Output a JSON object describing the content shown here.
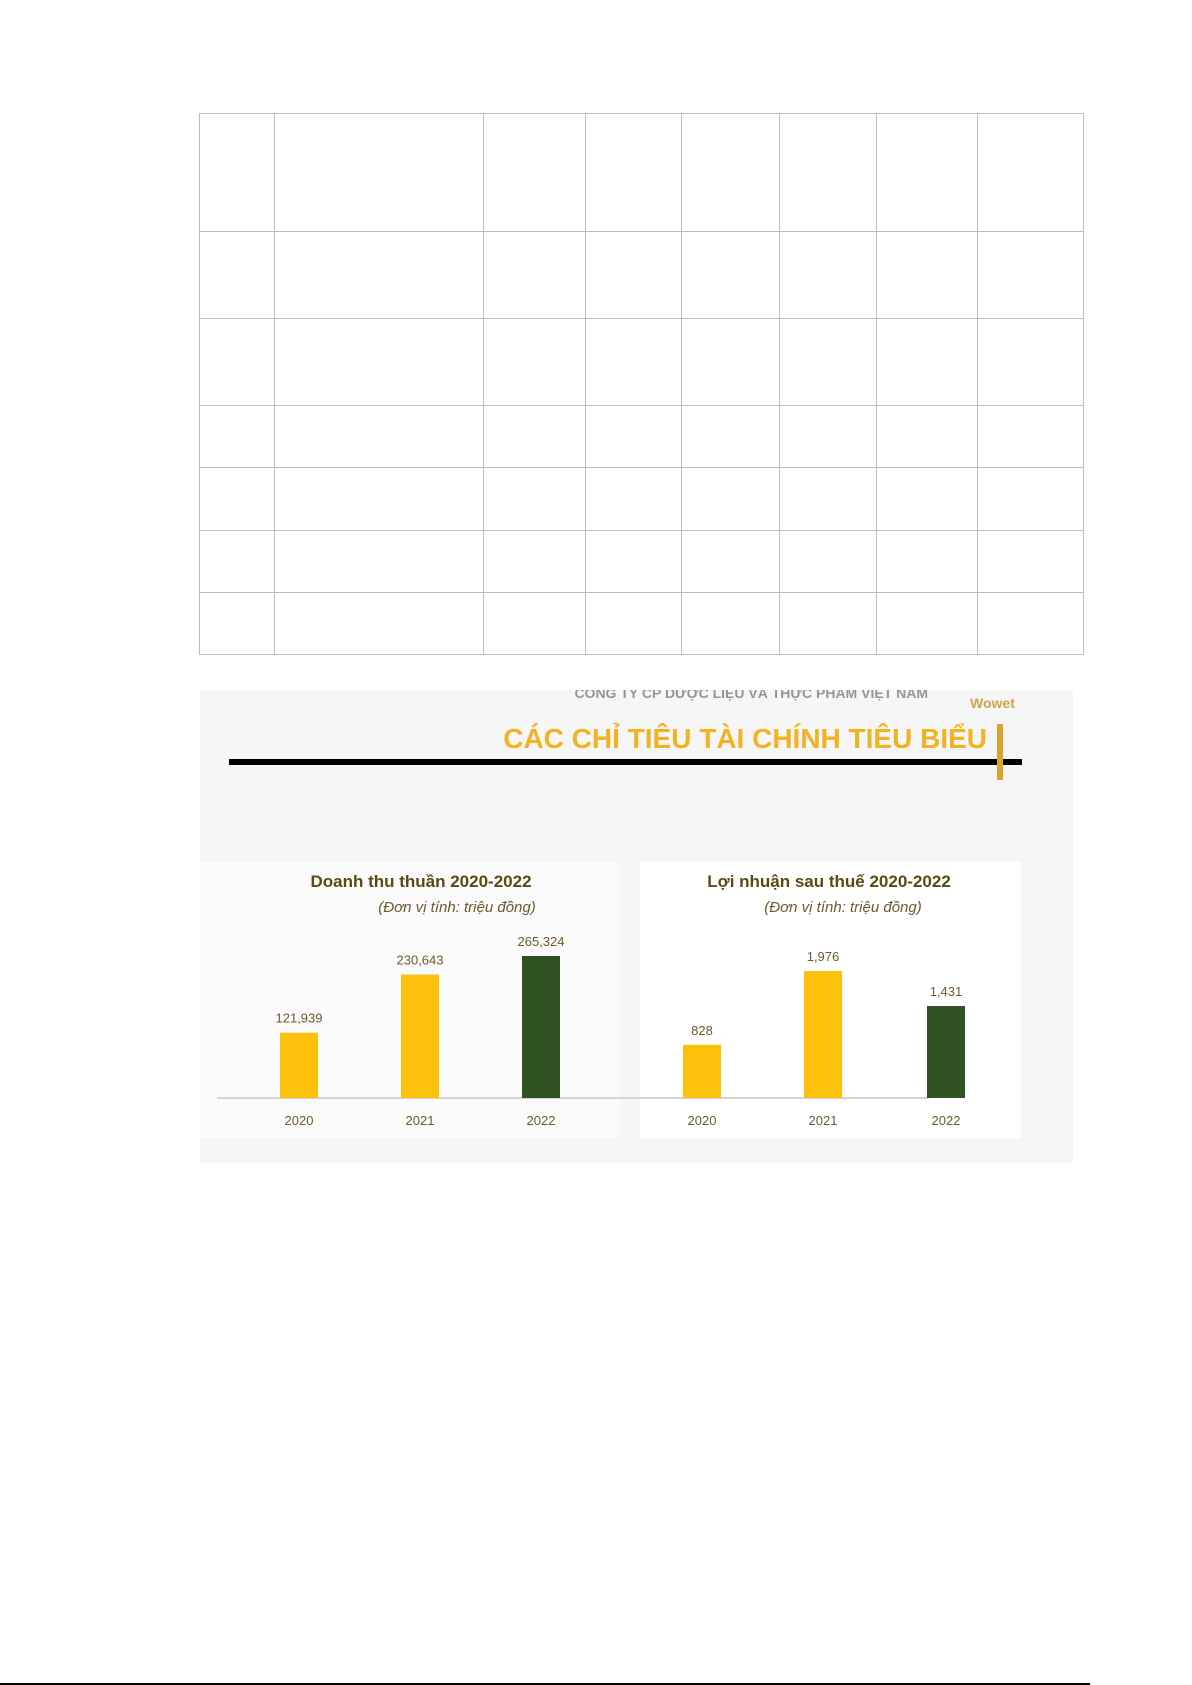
{
  "table": {
    "rows": 7,
    "cols": 8
  },
  "figure": {
    "company_line": "CÔNG TY CP DƯỢC LIỆU VÀ THỰC PHẨM VIỆT NAM",
    "logo_text": "Wowet",
    "heading": "CÁC CHỈ TIÊU TÀI CHÍNH TIÊU BIỂU",
    "colors": {
      "heading": "#f0b323",
      "yellow_bar": "#fcc10a",
      "green_bar": "#2f5223",
      "title_text": "#5b4a10",
      "rule": "#000000"
    }
  },
  "chart_data": [
    {
      "type": "bar",
      "title": "Doanh thu thuần 2020-2022",
      "subtitle": "(Đơn vị tính: triệu đồng)",
      "categories": [
        "2020",
        "2021",
        "2022"
      ],
      "values": [
        121939,
        230643,
        265324
      ],
      "data_labels": [
        "121,939",
        "230,643",
        "265,324"
      ],
      "bar_colors": [
        "#fcc10a",
        "#fcc10a",
        "#2f5223"
      ],
      "grid": false
    },
    {
      "type": "bar",
      "title": "Lợi nhuận sau thuế 2020-2022",
      "subtitle": "(Đơn vị tính: triệu đồng)",
      "categories": [
        "2020",
        "2021",
        "2022"
      ],
      "values": [
        828,
        1976,
        1431
      ],
      "data_labels": [
        "828",
        "1,976",
        "1,431"
      ],
      "bar_colors": [
        "#fcc10a",
        "#fcc10a",
        "#2f5223"
      ],
      "grid": false
    }
  ]
}
